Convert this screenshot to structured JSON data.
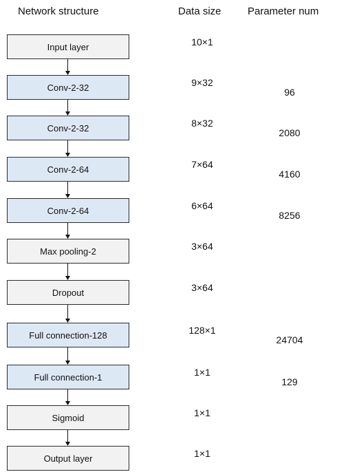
{
  "headers": {
    "network_structure": "Network structure",
    "data_size": "Data size",
    "parameter_num": "Parameter num"
  },
  "layers": [
    {
      "name": "Input layer",
      "size": "10×1",
      "params": "",
      "fill": "gray"
    },
    {
      "name": "Conv-2-32",
      "size": "9×32",
      "params": "96",
      "fill": "blue"
    },
    {
      "name": "Conv-2-32",
      "size": "8×32",
      "params": "2080",
      "fill": "blue"
    },
    {
      "name": "Conv-2-64",
      "size": "7×64",
      "params": "4160",
      "fill": "blue"
    },
    {
      "name": "Conv-2-64",
      "size": "6×64",
      "params": "8256",
      "fill": "blue"
    },
    {
      "name": "Max pooling-2",
      "size": "3×64",
      "params": "",
      "fill": "gray"
    },
    {
      "name": "Dropout",
      "size": "3×64",
      "params": "",
      "fill": "gray"
    },
    {
      "name": "Full connection-128",
      "size": "128×1",
      "params": "24704",
      "fill": "blue"
    },
    {
      "name": "Full connection-1",
      "size": "1×1",
      "params": "129",
      "fill": "blue"
    },
    {
      "name": "Sigmoid",
      "size": "1×1",
      "params": "",
      "fill": "gray"
    },
    {
      "name": "Output layer",
      "size": "1×1",
      "params": "",
      "fill": "gray"
    }
  ],
  "colors": {
    "gray_fill": "#f2f2f2",
    "blue_fill": "#dde8f5",
    "border": "#2b2b2b"
  }
}
